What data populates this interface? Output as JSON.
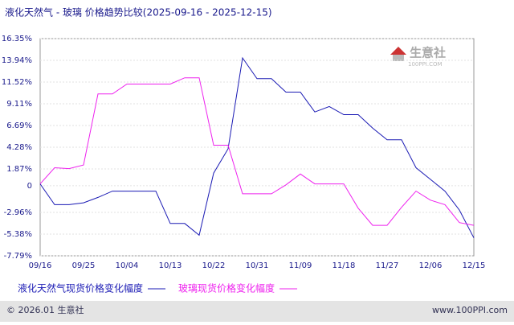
{
  "chart_data": {
    "type": "line",
    "title": "液化天然气 - 玻璃 价格趋势比较(2025-09-16 - 2025-12-15)",
    "categories": [
      "09/16",
      null,
      null,
      "09/25",
      null,
      null,
      "10/04",
      null,
      null,
      "10/13",
      null,
      null,
      "10/22",
      null,
      null,
      "10/31",
      null,
      null,
      "11/09",
      null,
      null,
      "11/18",
      null,
      null,
      "11/27",
      null,
      null,
      "12/06",
      null,
      null,
      "12/15"
    ],
    "series": [
      {
        "name": "液化天然气现货价格变化幅度",
        "color": "#1a1ab4",
        "values": [
          0.2,
          -2.1,
          -2.1,
          -1.9,
          -1.3,
          -0.6,
          -0.6,
          -0.6,
          -0.6,
          -4.2,
          -4.2,
          -5.5,
          1.4,
          4.1,
          14.2,
          11.9,
          11.9,
          10.4,
          10.4,
          8.2,
          8.8,
          7.9,
          7.9,
          6.4,
          5.1,
          5.1,
          2.0,
          0.7,
          -0.6,
          -2.7,
          -5.8
        ]
      },
      {
        "name": "玻璃现货价格变化幅度",
        "color": "#ee22ee",
        "values": [
          0.2,
          2.0,
          1.9,
          2.3,
          10.2,
          10.2,
          11.3,
          11.3,
          11.3,
          11.3,
          12.0,
          12.0,
          4.5,
          4.5,
          -0.9,
          -0.9,
          -0.9,
          0.1,
          1.3,
          0.2,
          0.2,
          0.2,
          -2.5,
          -4.4,
          -4.4,
          -2.4,
          -0.6,
          -1.6,
          -2.1,
          -4.1,
          -4.4
        ]
      }
    ],
    "ylim": [
      -7.79,
      16.35
    ],
    "yticks": [
      {
        "value": 16.35,
        "label": "16.35%"
      },
      {
        "value": 13.94,
        "label": "13.94%"
      },
      {
        "value": 11.52,
        "label": "11.52%"
      },
      {
        "value": 9.11,
        "label": "9.11%"
      },
      {
        "value": 6.69,
        "label": "6.69%"
      },
      {
        "value": 4.28,
        "label": "4.28%"
      },
      {
        "value": 1.87,
        "label": "1.87%"
      },
      0,
      {
        "value": -2.96,
        "label": "-2.96%"
      },
      {
        "value": -5.38,
        "label": "-5.38%"
      },
      {
        "value": -7.79,
        "label": "-7.79%"
      }
    ],
    "grid": true
  },
  "watermark": {
    "brand": "生意社",
    "site": "100PPI.COM"
  },
  "footer": {
    "left": "© 2026.01 生意社",
    "right": "www.100PPI.com"
  }
}
